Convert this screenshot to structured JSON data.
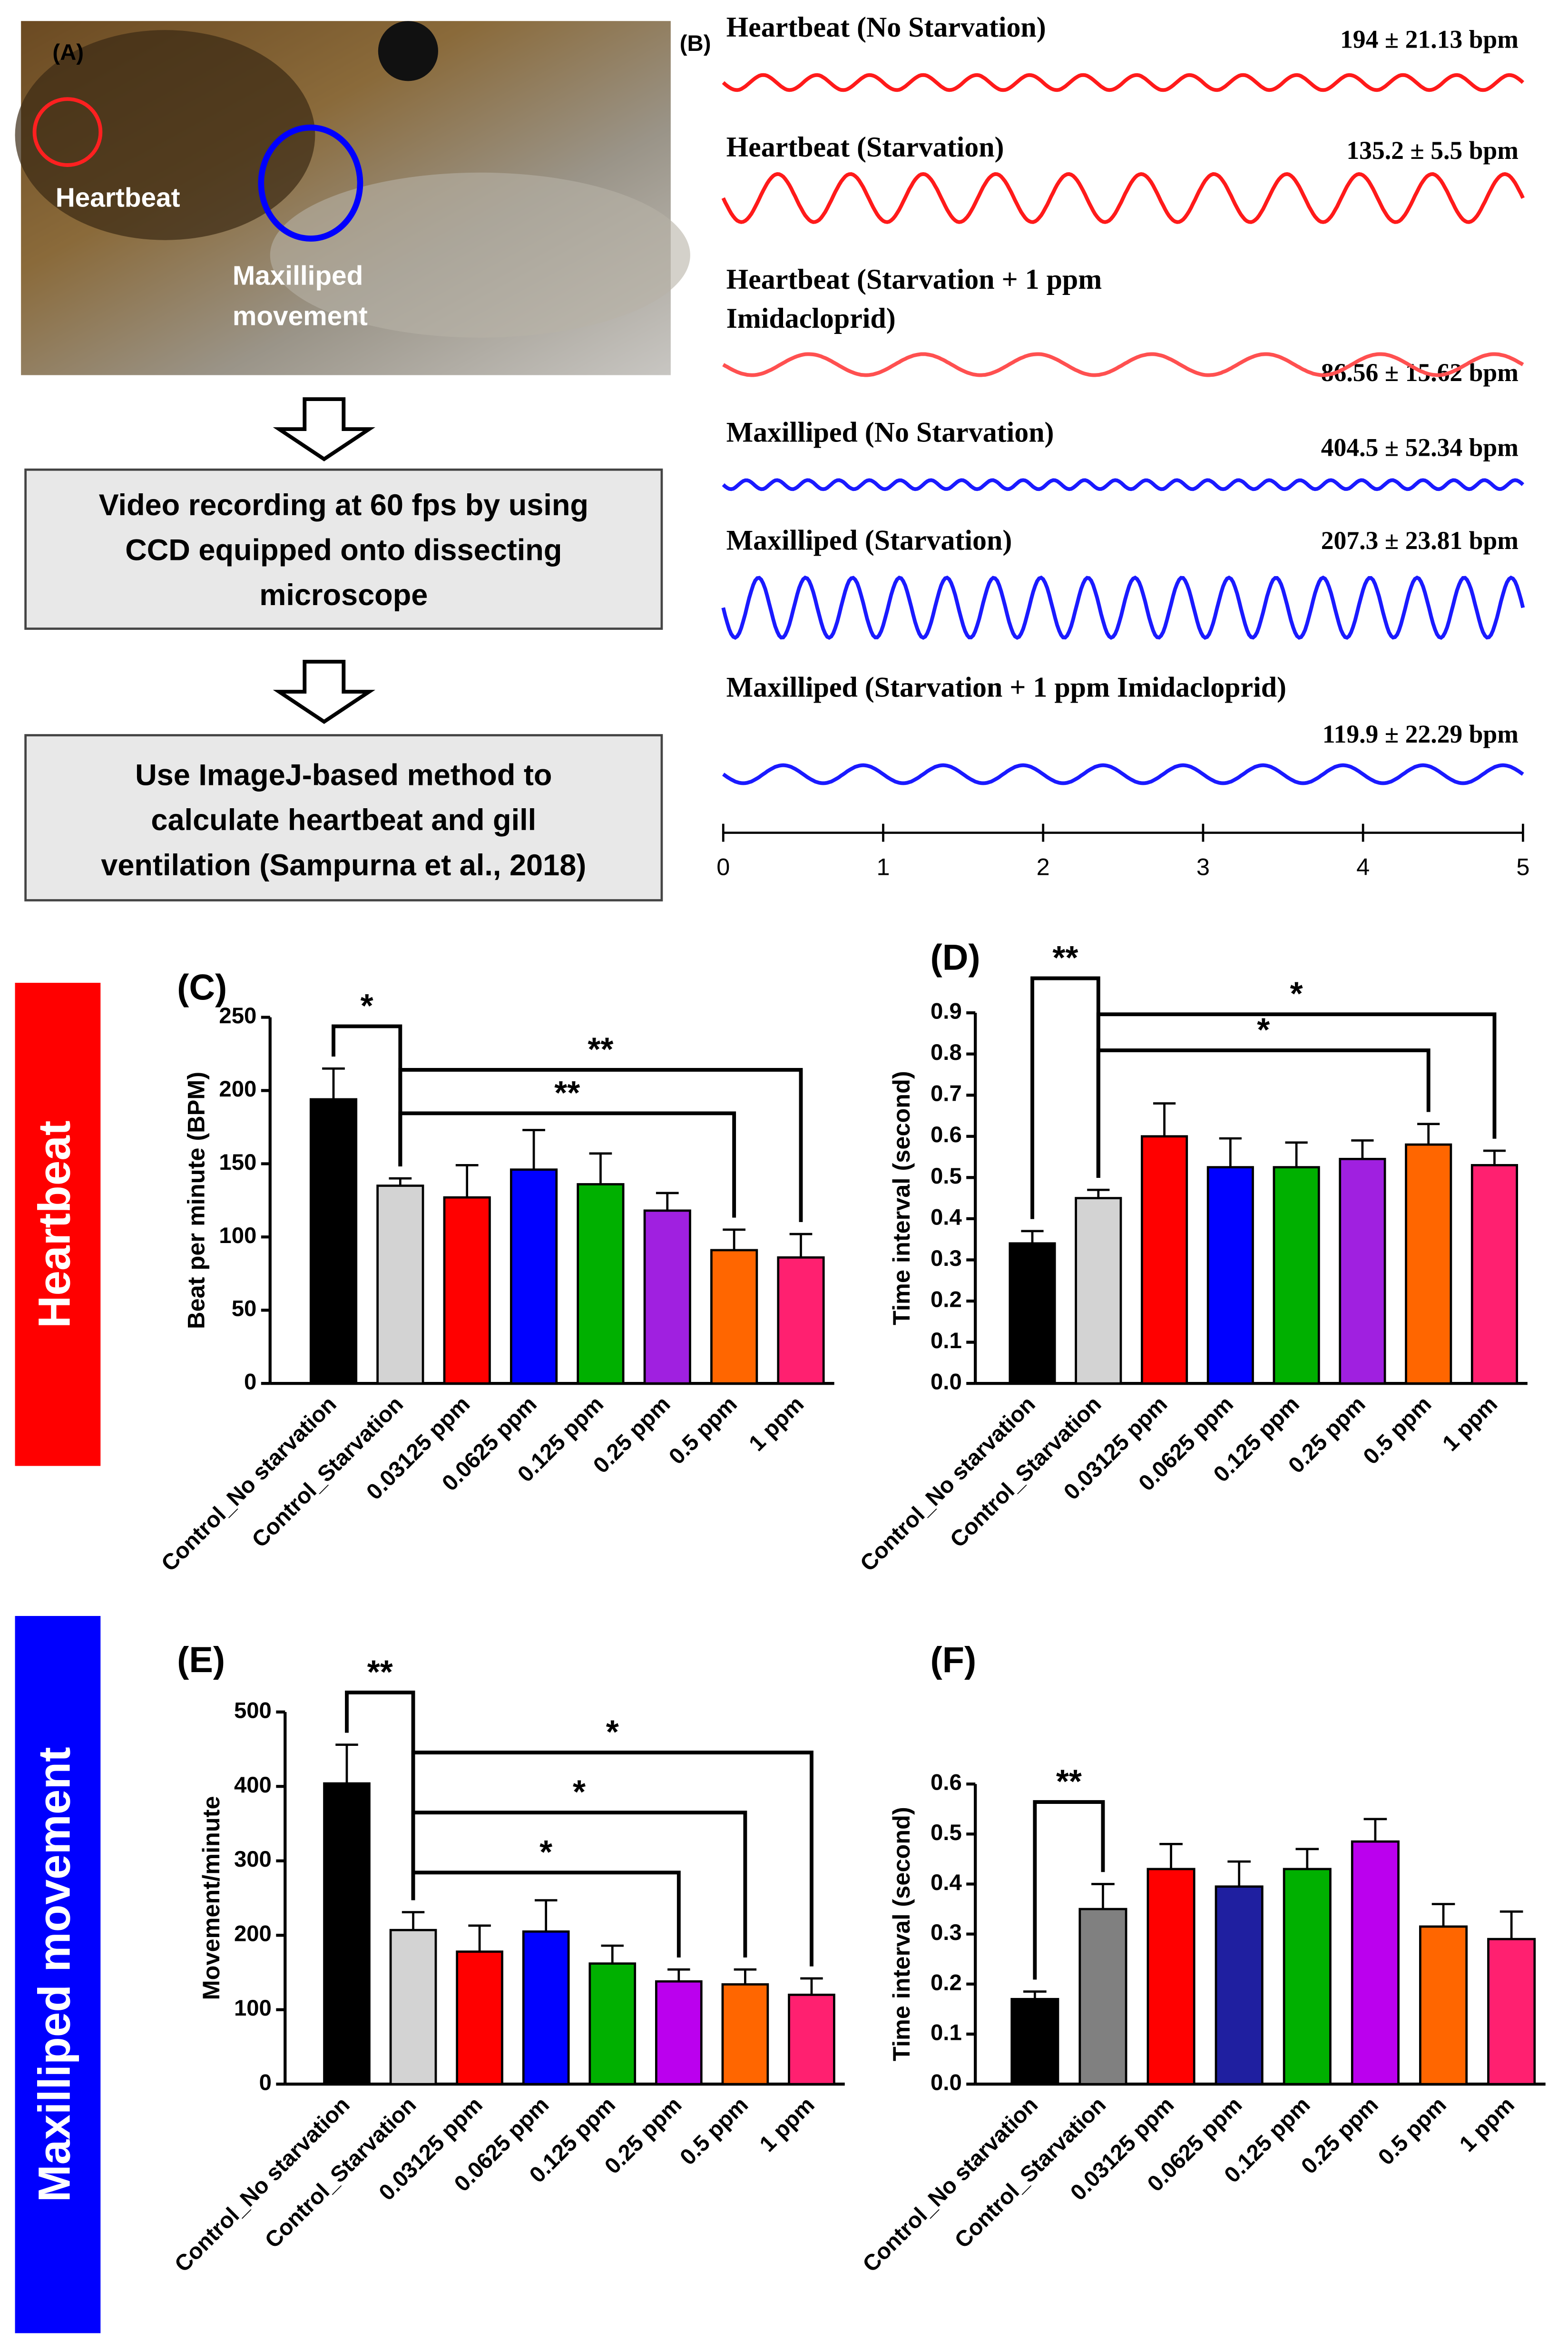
{
  "panel_a": {
    "label": "(A)",
    "photo_labels": [
      [
        "Heartbeat"
      ],
      [
        "Maxilliped",
        "movement"
      ]
    ],
    "boxes": [
      [
        "Video recording at 60 fps by using",
        "CCD equipped onto dissecting",
        "microscope"
      ],
      [
        "Use ImageJ-based method to",
        "calculate heartbeat and gill",
        "ventilation (Sampurna et al., 2018)"
      ]
    ]
  },
  "panel_b": {
    "label": "(B)",
    "traces": [
      {
        "name": [
          "Heartbeat (No Starvation)"
        ],
        "value_label": "194 ± 21.13 bpm",
        "color": "#ff1a1a"
      },
      {
        "name": [
          "Heartbeat (Starvation)"
        ],
        "value_label": "135.2 ± 5.5 bpm",
        "color": "#ff1a1a"
      },
      {
        "name": [
          "Heartbeat (Starvation + 1 ppm",
          "Imidacloprid)"
        ],
        "value_label": "86.56 ± 15.62 bpm",
        "color": "#ff5050"
      },
      {
        "name": [
          "Maxilliped (No Starvation)"
        ],
        "value_label": "404.5 ± 52.34 bpm",
        "color": "#1a1aff"
      },
      {
        "name": [
          "Maxilliped (Starvation)"
        ],
        "value_label": "207.3 ± 23.81 bpm",
        "color": "#1a1aff"
      },
      {
        "name": [
          "Maxilliped (Starvation + 1 ppm Imidacloprid)"
        ],
        "value_label": "119.9 ± 22.29 bpm",
        "color": "#1a1aff"
      }
    ],
    "xlim": [
      0,
      5
    ],
    "xticks": [
      0,
      1,
      2,
      3,
      4,
      5
    ]
  },
  "side_labels": [
    {
      "text": "Heartbeat",
      "color": "#ff0000"
    },
    {
      "text": "Maxilliped movement",
      "color": "#0000ff"
    }
  ],
  "chart_data": [
    {
      "type": "bar",
      "title": "(C)",
      "y_label": "Beat per minute (BPM)",
      "categories": [
        "Control_No starvation",
        "Control_Starvation",
        "0.03125 ppm",
        "0.0625 ppm",
        "0.125 ppm",
        "0.25 ppm",
        "0.5 ppm",
        "1 ppm"
      ],
      "values": [
        194,
        135,
        127,
        146,
        136,
        118,
        91,
        86
      ],
      "errors": [
        21,
        5,
        22,
        27,
        21,
        12,
        14,
        16
      ],
      "colors": [
        "#000000",
        "#d3d3d3",
        "#ff0000",
        "#0000ff",
        "#00b000",
        "#a020e0",
        "#ff6600",
        "#ff2070"
      ],
      "ylim": [
        0,
        250
      ],
      "yticks": [
        0,
        50,
        100,
        150,
        200,
        250
      ],
      "annotations": [
        {
          "label": "*",
          "between": [
            "Control_No starvation",
            "Control_Starvation"
          ]
        },
        {
          "label": "**",
          "between": [
            "Control_Starvation",
            "1 ppm"
          ]
        },
        {
          "label": "**",
          "between": [
            "Control_Starvation",
            "0.5 ppm"
          ]
        }
      ]
    },
    {
      "type": "bar",
      "title": "(D)",
      "y_label": "Time interval (second)",
      "categories": [
        "Control_No starvation",
        "Control_Starvation",
        "0.03125 ppm",
        "0.0625 ppm",
        "0.125 ppm",
        "0.25 ppm",
        "0.5 ppm",
        "1 ppm"
      ],
      "values": [
        0.34,
        0.45,
        0.6,
        0.525,
        0.525,
        0.545,
        0.58,
        0.53
      ],
      "errors": [
        0.03,
        0.02,
        0.08,
        0.07,
        0.06,
        0.045,
        0.05,
        0.035
      ],
      "colors": [
        "#000000",
        "#d3d3d3",
        "#ff0000",
        "#0000ff",
        "#00b000",
        "#a020e0",
        "#ff6600",
        "#ff2070"
      ],
      "ylim": [
        0,
        0.9
      ],
      "yticks": [
        {
          "value": 0,
          "label": "0.0"
        },
        0.1,
        0.2,
        0.3,
        0.4,
        0.5,
        0.6,
        0.7,
        0.8,
        0.9
      ],
      "annotations": [
        {
          "label": "**",
          "between": [
            "Control_No starvation",
            "Control_Starvation"
          ]
        },
        {
          "label": "*",
          "between": [
            "Control_Starvation",
            "1 ppm"
          ]
        },
        {
          "label": "*",
          "between": [
            "Control_Starvation",
            "0.5 ppm"
          ]
        }
      ]
    },
    {
      "type": "bar",
      "title": "(E)",
      "y_label": "Movement/minute",
      "categories": [
        "Control_No starvation",
        "Control_Starvation",
        "0.03125 ppm",
        "0.0625 ppm",
        "0.125 ppm",
        "0.25 ppm",
        "0.5 ppm",
        "1 ppm"
      ],
      "values": [
        404,
        207,
        178,
        205,
        162,
        138,
        134,
        120
      ],
      "errors": [
        52,
        24,
        35,
        42,
        24,
        16,
        20,
        22
      ],
      "colors": [
        "#000000",
        "#d3d3d3",
        "#ff0000",
        "#0000ff",
        "#00b000",
        "#bb00ee",
        "#ff6600",
        "#ff2070"
      ],
      "ylim": [
        0,
        500
      ],
      "yticks": [
        0,
        100,
        200,
        300,
        400,
        500
      ],
      "annotations": [
        {
          "label": "**",
          "between": [
            "Control_No starvation",
            "Control_Starvation"
          ]
        },
        {
          "label": "*",
          "between": [
            "Control_Starvation",
            "1 ppm"
          ]
        },
        {
          "label": "*",
          "between": [
            "Control_Starvation",
            "0.5 ppm"
          ]
        },
        {
          "label": "*",
          "between": [
            "Control_Starvation",
            "0.25 ppm"
          ]
        }
      ]
    },
    {
      "type": "bar",
      "title": "(F)",
      "y_label": "Time interval (second)",
      "categories": [
        "Control_No starvation",
        "Control_Starvation",
        "0.03125 ppm",
        "0.0625 ppm",
        "0.125 ppm",
        "0.25 ppm",
        "0.5 ppm",
        "1 ppm"
      ],
      "values": [
        0.17,
        0.35,
        0.43,
        0.395,
        0.43,
        0.485,
        0.315,
        0.29
      ],
      "errors": [
        0.015,
        0.05,
        0.05,
        0.05,
        0.04,
        0.045,
        0.045,
        0.055
      ],
      "colors": [
        "#000000",
        "#808080",
        "#ff0000",
        "#1f1fa0",
        "#00b000",
        "#bb00ee",
        "#ff6600",
        "#ff2070"
      ],
      "ylim": [
        0,
        0.6
      ],
      "yticks": [
        {
          "value": 0,
          "label": "0.0"
        },
        0.1,
        0.2,
        0.3,
        0.4,
        0.5,
        0.6
      ],
      "annotations": [
        {
          "label": "**",
          "between": [
            "Control_No starvation",
            "Control_Starvation"
          ]
        }
      ]
    }
  ]
}
